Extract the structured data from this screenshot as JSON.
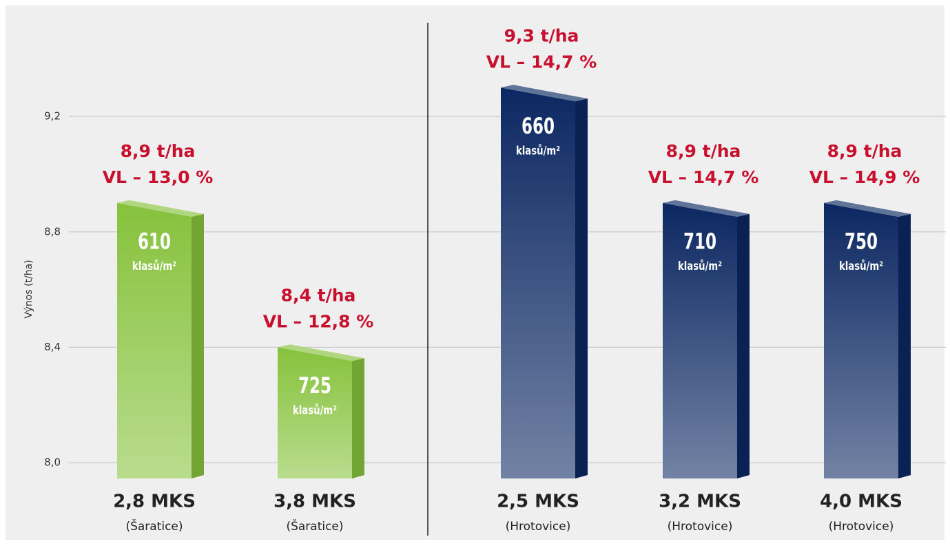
{
  "chart_data": {
    "type": "bar3d",
    "y_axis_label": "Výnos (t/ha)",
    "categories": [
      "2,8 MKS",
      "3,8 MKS",
      "2,5 MKS",
      "3,2 MKS",
      "4,0 MKS"
    ],
    "locations": [
      "(Šaratice)",
      "(Šaratice)",
      "(Hrotovice)",
      "(Hrotovice)",
      "(Hrotovice)"
    ],
    "values": [
      8.9,
      8.4,
      9.3,
      8.9,
      8.9
    ],
    "value_labels": [
      "8,9 t/ha",
      "8,4 t/ha",
      "9,3 t/ha",
      "8,9 t/ha",
      "8,9 t/ha"
    ],
    "annotations": [
      "VL – 13,0 %",
      "VL – 12,8 %",
      "VL – 14,7 %",
      "VL – 14,7 %",
      "VL – 14,9 %"
    ],
    "ear_counts": [
      610,
      725,
      660,
      710,
      750
    ],
    "ear_unit": "klasů/m²",
    "colors": [
      "#86c23c",
      "#86c23c",
      "#0c2862",
      "#0c2862",
      "#0c2862"
    ],
    "ylim": [
      7.945,
      9.58
    ],
    "yticks": [
      {
        "value": 8.0,
        "label": "8,0"
      },
      {
        "value": 8.4,
        "label": "8,4"
      },
      {
        "value": 8.8,
        "label": "8,8"
      },
      {
        "value": 9.2,
        "label": "9,2"
      }
    ],
    "grid": true
  }
}
